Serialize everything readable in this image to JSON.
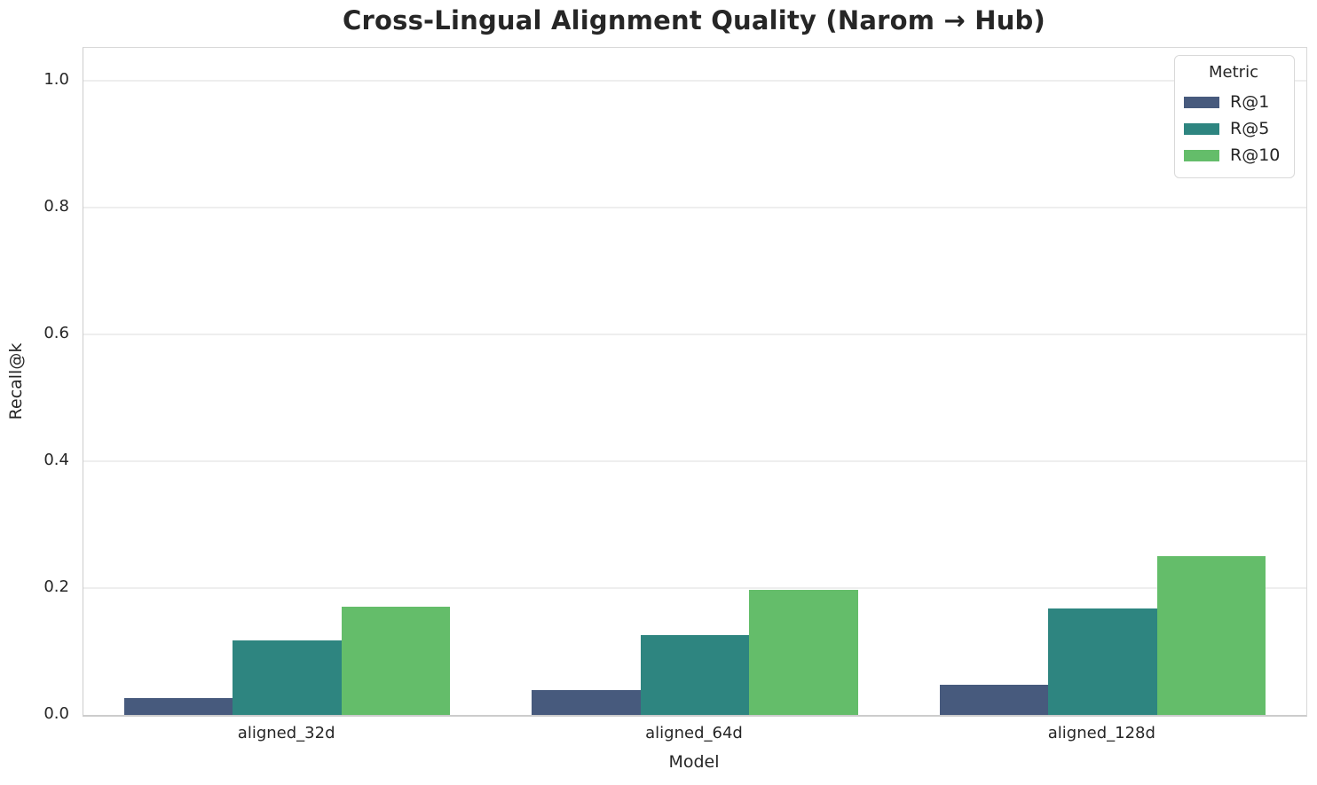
{
  "chart_data": {
    "type": "bar",
    "title": "Cross-Lingual Alignment Quality (Narom → Hub)",
    "xlabel": "Model",
    "ylabel": "Recall@k",
    "categories": [
      "aligned_32d",
      "aligned_64d",
      "aligned_128d"
    ],
    "series": [
      {
        "name": "R@1",
        "color": "#475a7d",
        "values": [
          0.027,
          0.039,
          0.048
        ]
      },
      {
        "name": "R@5",
        "color": "#2e8580",
        "values": [
          0.117,
          0.126,
          0.168
        ]
      },
      {
        "name": "R@10",
        "color": "#64bd6a",
        "values": [
          0.17,
          0.197,
          0.251
        ]
      }
    ],
    "ylim": [
      0.0,
      1.05
    ],
    "yticks": [
      "0.0",
      "0.2",
      "0.4",
      "0.6",
      "0.8",
      "1.0"
    ],
    "grid": "horizontal",
    "legend": {
      "title": "Metric",
      "position": "upper right"
    }
  },
  "colors": {
    "text": "#262626",
    "gridline": "#eeeeee",
    "spine": "#cccccc",
    "background": "#ffffff"
  }
}
